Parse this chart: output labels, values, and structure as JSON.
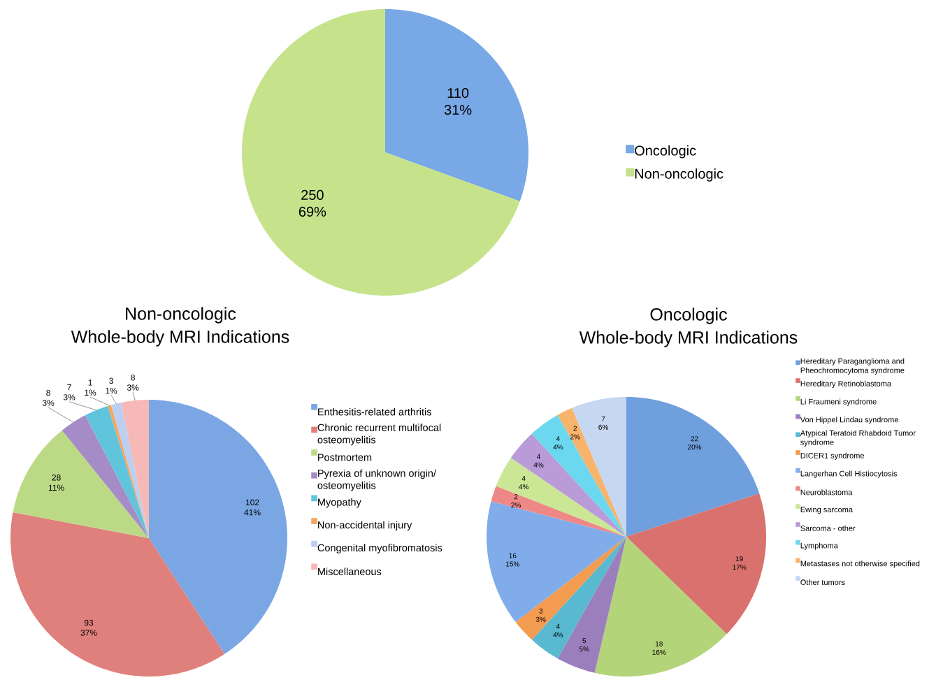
{
  "chart_data": [
    {
      "type": "pie",
      "categories": [
        "Oncologic",
        "Non-oncologic"
      ],
      "values": [
        110,
        250
      ],
      "colors": [
        "#78a8e6",
        "#c6e38c"
      ],
      "value_labels": [
        "110 31%",
        "250 69%"
      ],
      "legend": "right"
    },
    {
      "type": "pie",
      "title": "Non-oncologic",
      "subtitle": "Whole-body MRI Indications",
      "categories": [
        "Enthesitis-related arthritis",
        "Chronic recurrent multifocal osteomyelitis",
        "Postmortem",
        "Pyrexia of unknown origin/ osteomyelitis",
        "Myopathy",
        "Non-accidental injury",
        "Congenital myofibromatosis",
        "Miscellaneous"
      ],
      "values": [
        102,
        93,
        28,
        8,
        7,
        1,
        3,
        8
      ],
      "colors": [
        "#7aa7e4",
        "#e0807c",
        "#bcda86",
        "#a68cc6",
        "#5fc4dc",
        "#f5a660",
        "#bccff0",
        "#f6b9b7"
      ],
      "value_labels": [
        "102 41%",
        "93 37%",
        "28 11%",
        "8 3%",
        "7 3%",
        "1 1%",
        "3 1%",
        "8 3%"
      ],
      "legend": "right"
    },
    {
      "type": "pie",
      "title": "Oncologic",
      "subtitle": "Whole-body MRI Indications",
      "categories": [
        "Hereditary Paraganglioma and Pheochromocytoma syndrome",
        "Hereditary Retinoblastoma",
        "Li Fraumeni syndrome",
        "Von Hippel Lindau syndrome",
        "Atypical Teratoid Rhabdoid Tumor syndrome",
        "DICER1 syndrome",
        "Langerhan Cell Histiocytosis",
        "Neuroblastoma",
        "Ewing sarcoma",
        "Sarcoma - other",
        "Lymphoma",
        "Metastases not otherwise specified",
        "Other tumors"
      ],
      "values": [
        22,
        19,
        18,
        5,
        4,
        3,
        16,
        2,
        4,
        4,
        4,
        2,
        7
      ],
      "colors": [
        "#6f9fdc",
        "#d9726e",
        "#b4d47a",
        "#9b7fbd",
        "#58b9d0",
        "#f39b4f",
        "#80adea",
        "#ee8886",
        "#cbe695",
        "#b99bd8",
        "#6bd8ef",
        "#f8b46c",
        "#c6d7f2"
      ],
      "value_labels": [
        "22 20%",
        "19 17%",
        "18 16%",
        "5 5%",
        "4 4%",
        "3 3%",
        "16 15%",
        "2 2%",
        "4 4%",
        "4 4%",
        "4 4%",
        "2 2%",
        "7 6%"
      ],
      "legend": "right"
    }
  ]
}
